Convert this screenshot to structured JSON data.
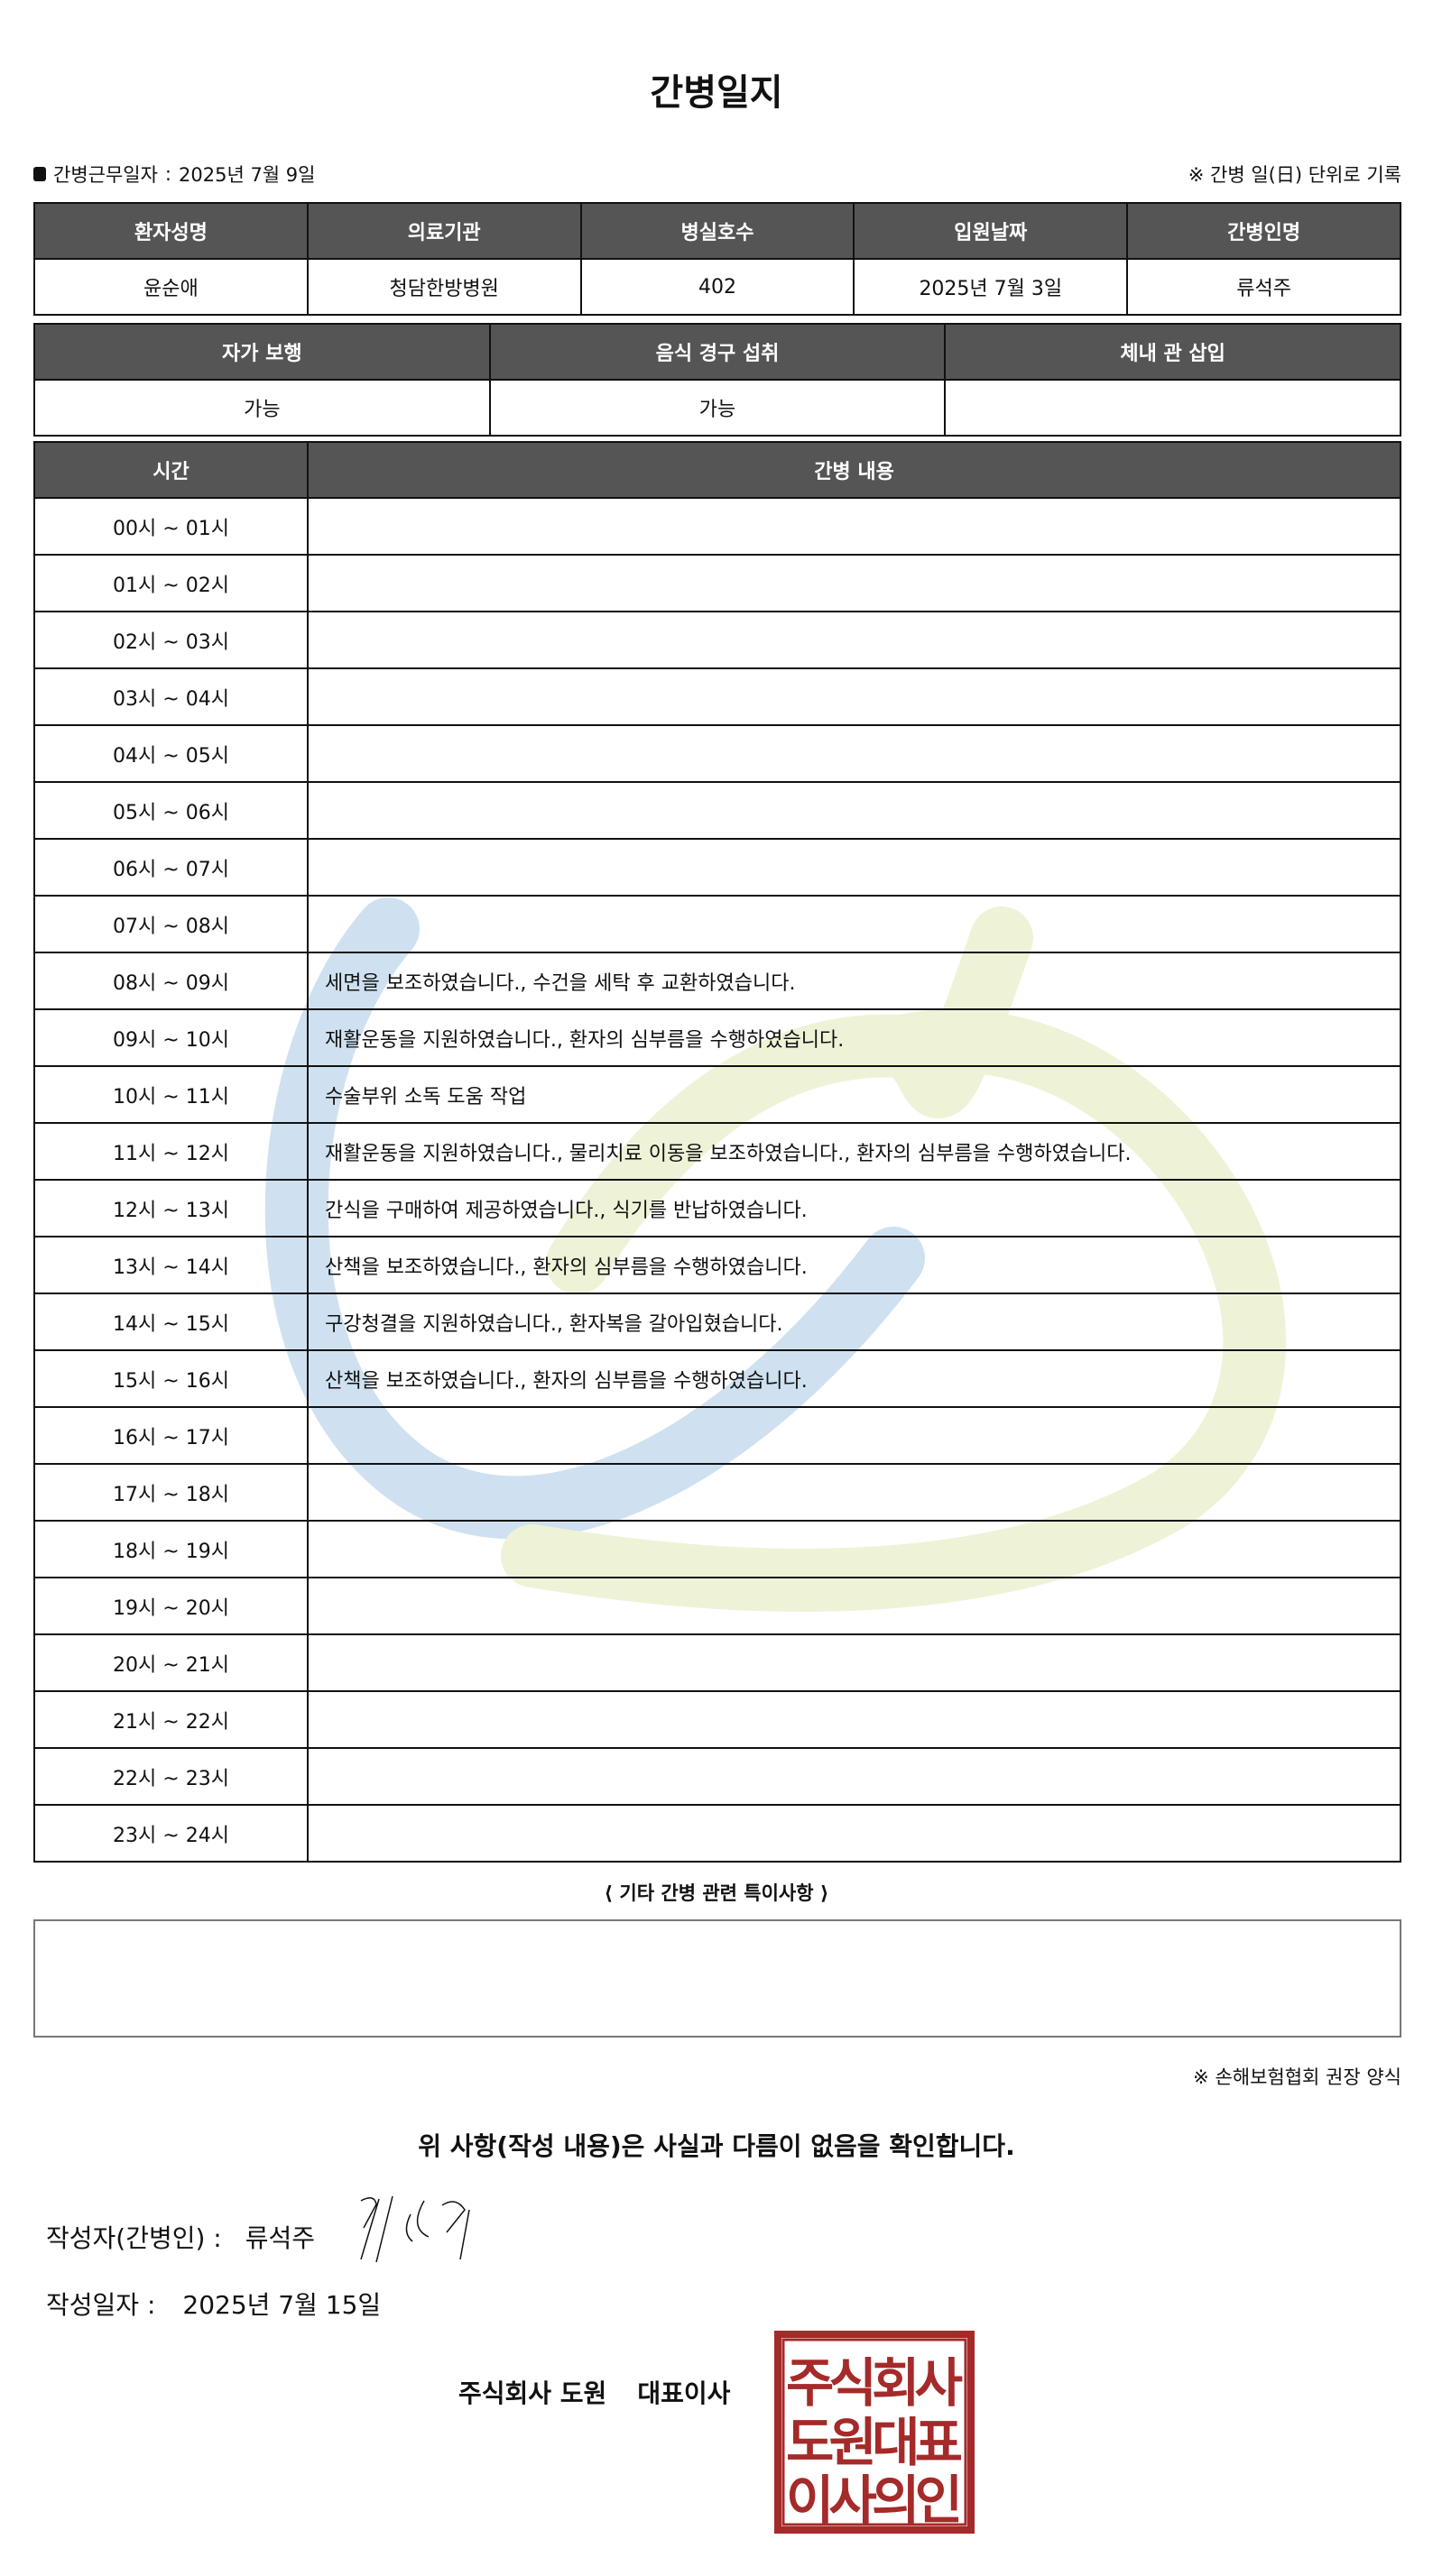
{
  "title": "간병일지",
  "work_date_label": "간병근무일자",
  "work_date": "2025년 7월 9일",
  "note_right": "※ 간병 일(日) 단위로 기록",
  "patient_table": {
    "headers": [
      "환자성명",
      "의료기관",
      "병실호수",
      "입원날짜",
      "간병인명"
    ],
    "values": [
      "윤순애",
      "청담한방병원",
      "402",
      "2025년 7월 3일",
      "류석주"
    ]
  },
  "status_table": {
    "headers": [
      "자가 보행",
      "음식 경구 섭취",
      "체내 관 삽입"
    ],
    "values": [
      "가능",
      "가능",
      ""
    ]
  },
  "log_table": {
    "headers": [
      "시간",
      "간병 내용"
    ],
    "rows": [
      {
        "time": "00시 ~ 01시",
        "content": ""
      },
      {
        "time": "01시 ~ 02시",
        "content": ""
      },
      {
        "time": "02시 ~ 03시",
        "content": ""
      },
      {
        "time": "03시 ~ 04시",
        "content": ""
      },
      {
        "time": "04시 ~ 05시",
        "content": ""
      },
      {
        "time": "05시 ~ 06시",
        "content": ""
      },
      {
        "time": "06시 ~ 07시",
        "content": ""
      },
      {
        "time": "07시 ~ 08시",
        "content": ""
      },
      {
        "time": "08시 ~ 09시",
        "content": "세면을 보조하였습니다., 수건을 세탁 후 교환하였습니다."
      },
      {
        "time": "09시 ~ 10시",
        "content": "재활운동을 지원하였습니다., 환자의 심부름을 수행하였습니다."
      },
      {
        "time": "10시 ~ 11시",
        "content": "수술부위 소독 도움 작업"
      },
      {
        "time": "11시 ~ 12시",
        "content": "재활운동을 지원하였습니다., 물리치료 이동을 보조하였습니다., 환자의 심부름을 수행하였습니다."
      },
      {
        "time": "12시 ~ 13시",
        "content": "간식을 구매하여 제공하였습니다., 식기를 반납하였습니다."
      },
      {
        "time": "13시 ~ 14시",
        "content": "산책을 보조하였습니다., 환자의 심부름을 수행하였습니다."
      },
      {
        "time": "14시 ~ 15시",
        "content": "구강청결을 지원하였습니다., 환자복을 갈아입혔습니다."
      },
      {
        "time": "15시 ~ 16시",
        "content": "산책을 보조하였습니다., 환자의 심부름을 수행하였습니다."
      },
      {
        "time": "16시 ~ 17시",
        "content": ""
      },
      {
        "time": "17시 ~ 18시",
        "content": ""
      },
      {
        "time": "18시 ~ 19시",
        "content": ""
      },
      {
        "time": "19시 ~ 20시",
        "content": ""
      },
      {
        "time": "20시 ~ 21시",
        "content": ""
      },
      {
        "time": "21시 ~ 22시",
        "content": ""
      },
      {
        "time": "22시 ~ 23시",
        "content": ""
      },
      {
        "time": "23시 ~ 24시",
        "content": ""
      }
    ]
  },
  "special_notes_title": "⟨ 기타 간병 관련 특이사항 ⟩",
  "special_notes": "",
  "form_note": "※ 손해보험협회 권장 양식",
  "confirm_text": "위 사항(작성 내용)은 사실과 다름이 없음을 확인합니다.",
  "writer_label": "작성자(간병인) :",
  "writer_name": "류석주",
  "write_date_label": "작성일자 :",
  "write_date": "2025년 7월 15일",
  "company": "주식회사 도원",
  "ceo_label": "대표이사",
  "seal_text": [
    "주식회사",
    "도원대표",
    "이사의인"
  ],
  "colors": {
    "header_bg": "#555555",
    "seal": "#a52a2a",
    "watermark_blue": "#cfe1f0",
    "watermark_green": "#eef3d8"
  }
}
